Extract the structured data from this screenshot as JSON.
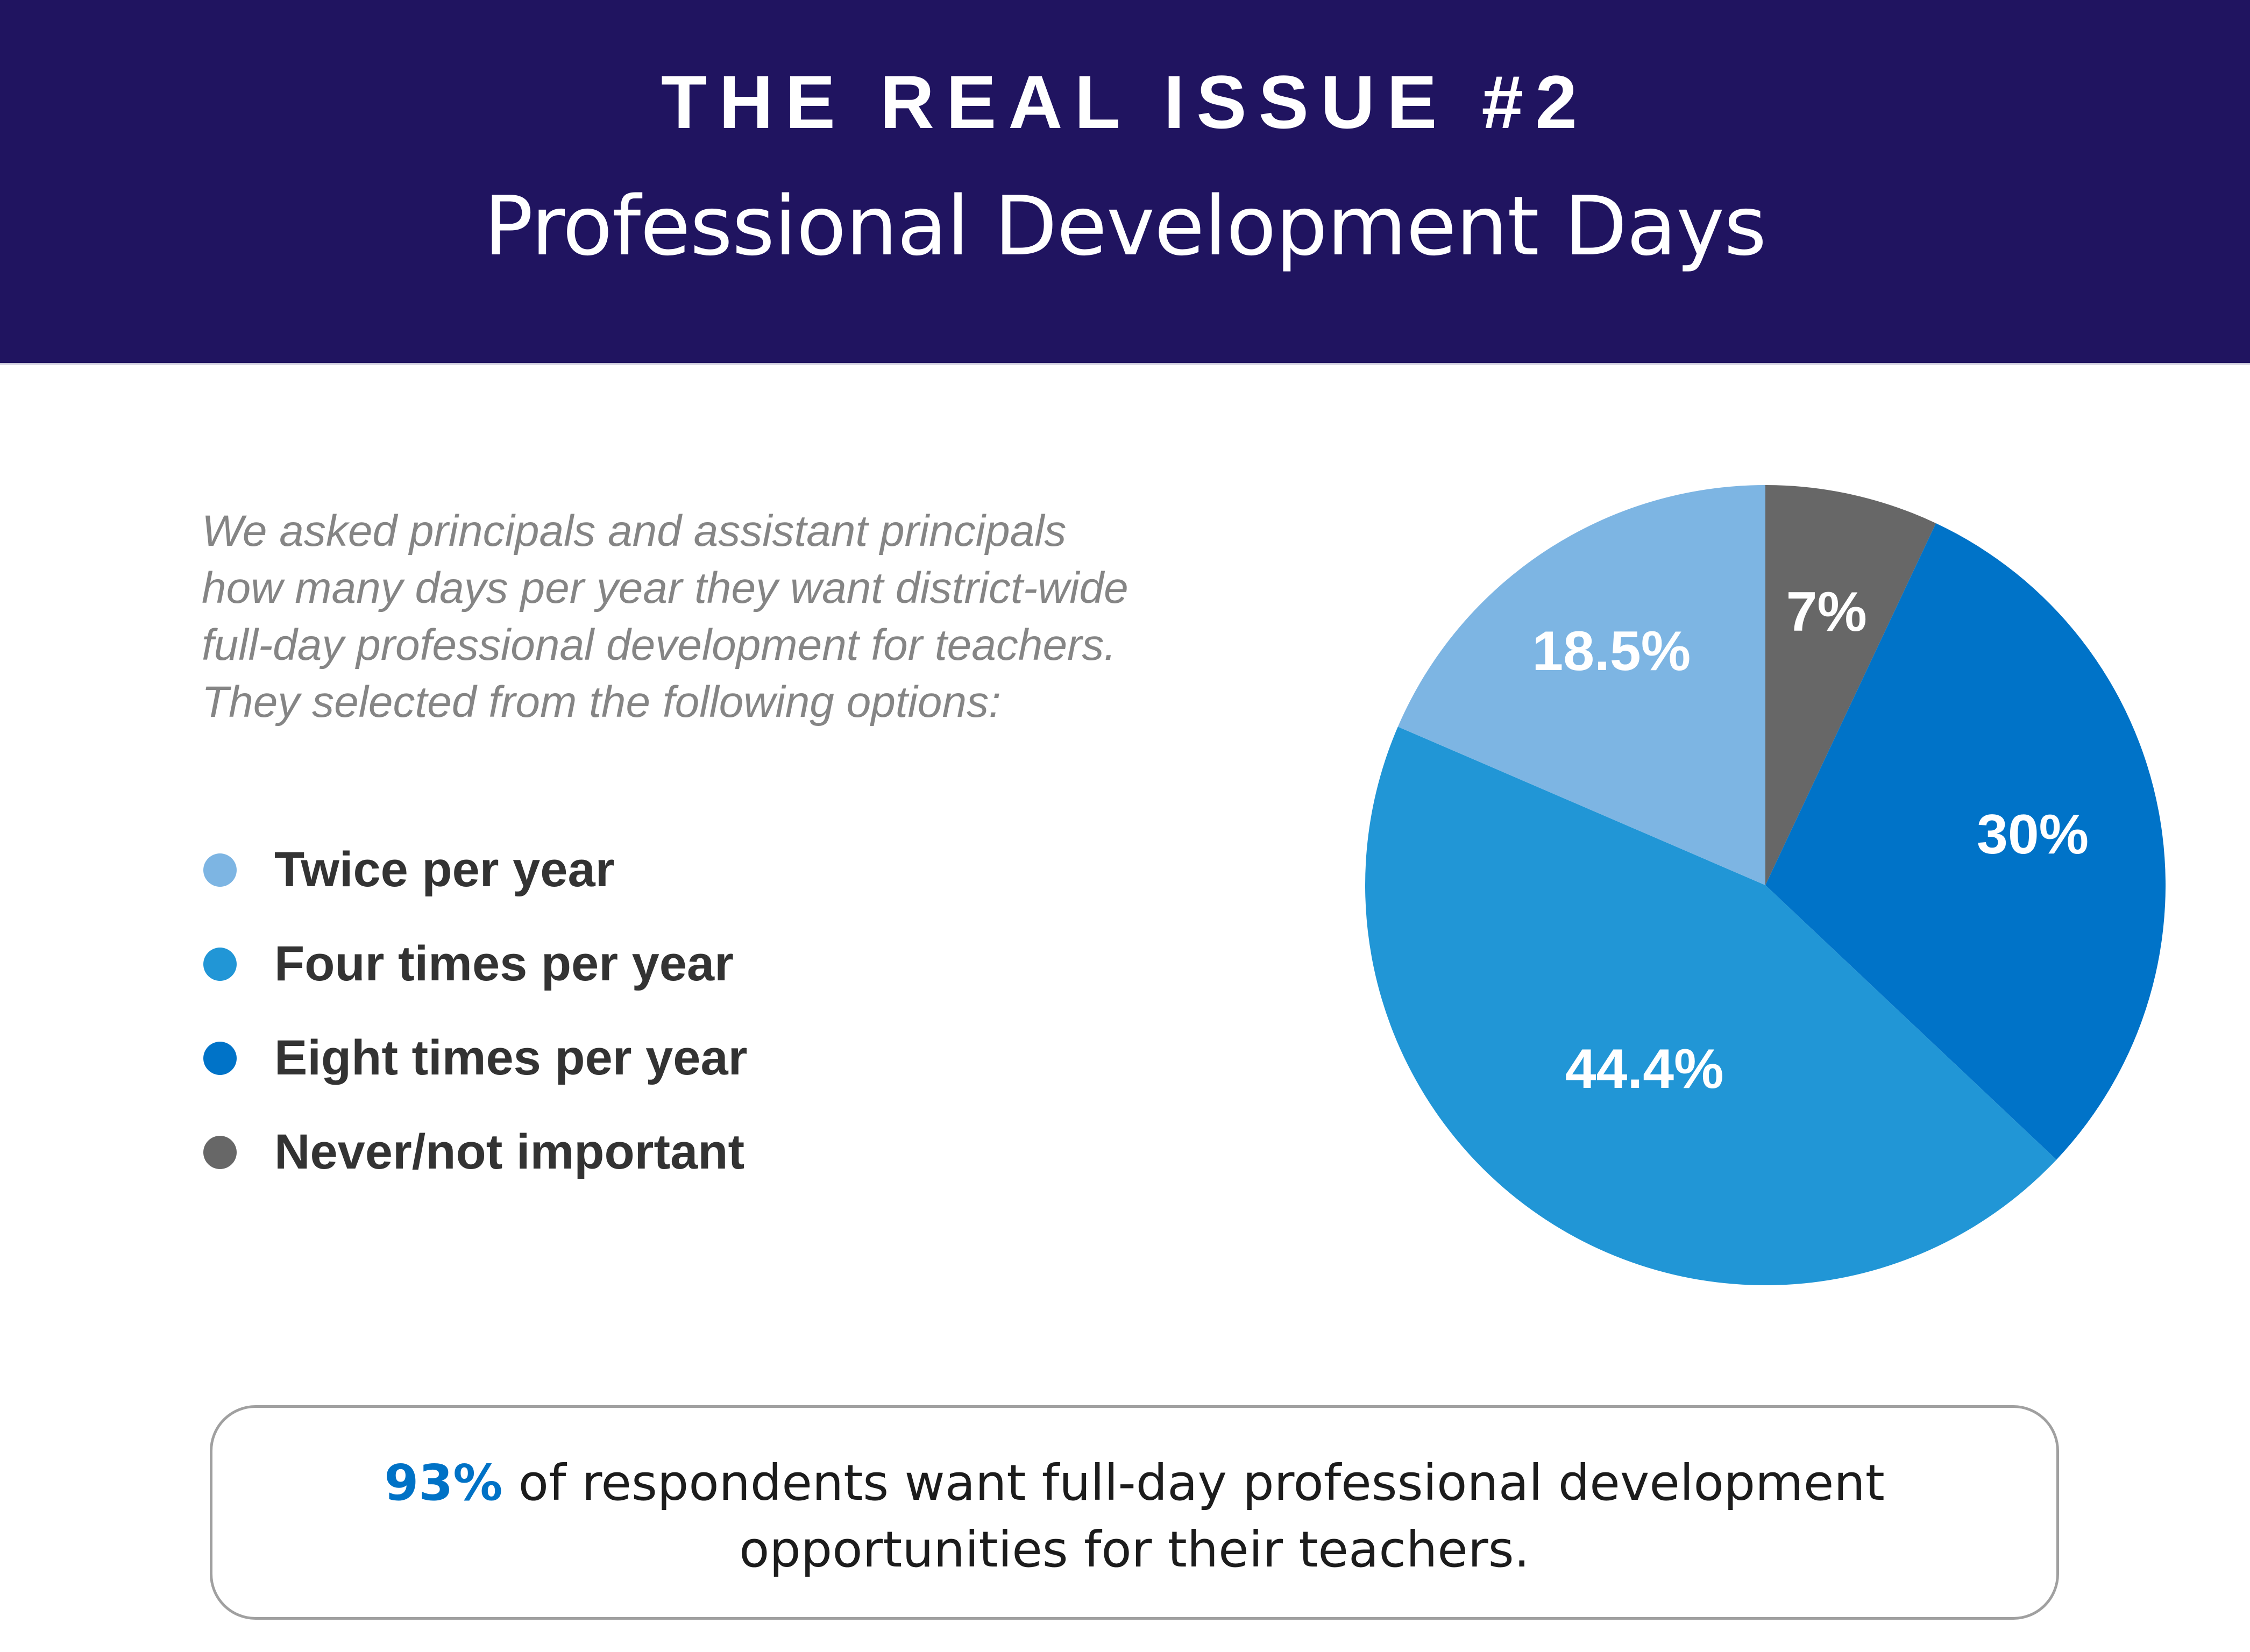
{
  "header": {
    "title": "THE REAL ISSUE #2",
    "subtitle": "Professional Development Days",
    "background_color": "#201460"
  },
  "intro": {
    "lines": [
      "We asked principals and assistant principals",
      "how many days per year they want district-wide",
      "full-day professional development for teachers.",
      "They selected from the following options:"
    ]
  },
  "legend": {
    "items": [
      {
        "label": "Twice per year",
        "color": "#7db5e3"
      },
      {
        "label": "Four times per year",
        "color": "#2196d6"
      },
      {
        "label": "Eight times per year",
        "color": "#0073c8"
      },
      {
        "label": "Never/not important",
        "color": "#676767"
      }
    ]
  },
  "chart_data": {
    "type": "pie",
    "title": "Professional Development Days",
    "start_angle": "12 o'clock",
    "direction": "clockwise",
    "slices": [
      {
        "label": "Never/not important",
        "value": 7,
        "display": "7%",
        "color": "#676767"
      },
      {
        "label": "Eight times per year",
        "value": 30,
        "display": "30%",
        "color": "#0073c8"
      },
      {
        "label": "Four times per year",
        "value": 44.4,
        "display": "44.4%",
        "color": "#2196d6"
      },
      {
        "label": "Twice per year",
        "value": 18.5,
        "display": "18.5%",
        "color": "#7db5e3"
      }
    ],
    "legend_placement": "left"
  },
  "summary": {
    "highlight": "93%",
    "line1": " of respondents want full-day professional development",
    "line2": "opportunities for their teachers.",
    "highlight_color": "#0072c6"
  }
}
